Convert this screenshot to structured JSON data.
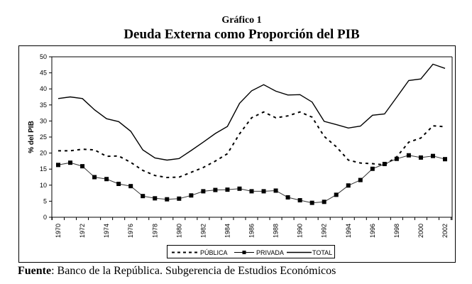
{
  "figure": {
    "label": "Gráfico 1",
    "title": "Deuda Externa como Proporción del PIB"
  },
  "source": {
    "prefix": "Fuente",
    "text": ": Banco de la República. Subgerencia de Estudios Económicos"
  },
  "chart_data": {
    "type": "line",
    "title": "Deuda Externa como Proporción del PIB",
    "xlabel": "",
    "ylabel": "% del PIB",
    "ylim": [
      0,
      50
    ],
    "yticks": [
      "0",
      "5",
      "10",
      "15",
      "20",
      "25",
      "30",
      "35",
      "40",
      "45",
      "50"
    ],
    "xticks": [
      "1970",
      "1972",
      "1974",
      "1976",
      "1978",
      "1980",
      "1982",
      "1984",
      "1986",
      "1988",
      "1990",
      "1992",
      "1994",
      "1996",
      "1998",
      "2000",
      "2002"
    ],
    "x": [
      1970,
      1971,
      1972,
      1973,
      1974,
      1975,
      1976,
      1977,
      1978,
      1979,
      1980,
      1981,
      1982,
      1983,
      1984,
      1985,
      1986,
      1987,
      1988,
      1989,
      1990,
      1991,
      1992,
      1993,
      1994,
      1995,
      1996,
      1997,
      1998,
      1999,
      2000,
      2001,
      2002
    ],
    "grid": false,
    "legend_position": "bottom",
    "series": [
      {
        "name": "PÚBLICA",
        "style": "dashed",
        "color": "#000000",
        "values": [
          20.7,
          20.7,
          21.2,
          21.0,
          19.0,
          19.1,
          17.1,
          14.6,
          13.0,
          12.4,
          12.5,
          14.0,
          15.5,
          17.5,
          19.8,
          26.0,
          31.0,
          32.8,
          31.0,
          31.6,
          32.8,
          31.2,
          25.2,
          22.0,
          17.8,
          16.9,
          16.7,
          16.3,
          18.8,
          23.4,
          24.7,
          28.5,
          28.2
        ]
      },
      {
        "name": "PRIVADA",
        "style": "line-square-markers",
        "color": "#000000",
        "values": [
          16.3,
          17.0,
          15.9,
          12.5,
          11.9,
          10.4,
          9.7,
          6.6,
          5.9,
          5.6,
          5.8,
          6.8,
          8.1,
          8.5,
          8.6,
          8.9,
          8.1,
          8.1,
          8.3,
          6.2,
          5.3,
          4.5,
          4.8,
          7.0,
          9.9,
          11.6,
          15.1,
          16.6,
          18.2,
          19.3,
          18.6,
          19.1,
          18.1
        ]
      },
      {
        "name": "TOTAL",
        "style": "solid",
        "color": "#000000",
        "values": [
          37.0,
          37.5,
          37.0,
          33.5,
          30.7,
          29.8,
          26.8,
          21.0,
          18.5,
          17.8,
          18.3,
          20.8,
          23.4,
          26.1,
          28.3,
          35.5,
          39.4,
          41.3,
          39.3,
          38.1,
          38.2,
          35.9,
          29.9,
          28.9,
          27.8,
          28.4,
          31.8,
          32.2,
          37.4,
          42.6,
          43.1,
          47.7,
          46.4
        ]
      }
    ]
  }
}
